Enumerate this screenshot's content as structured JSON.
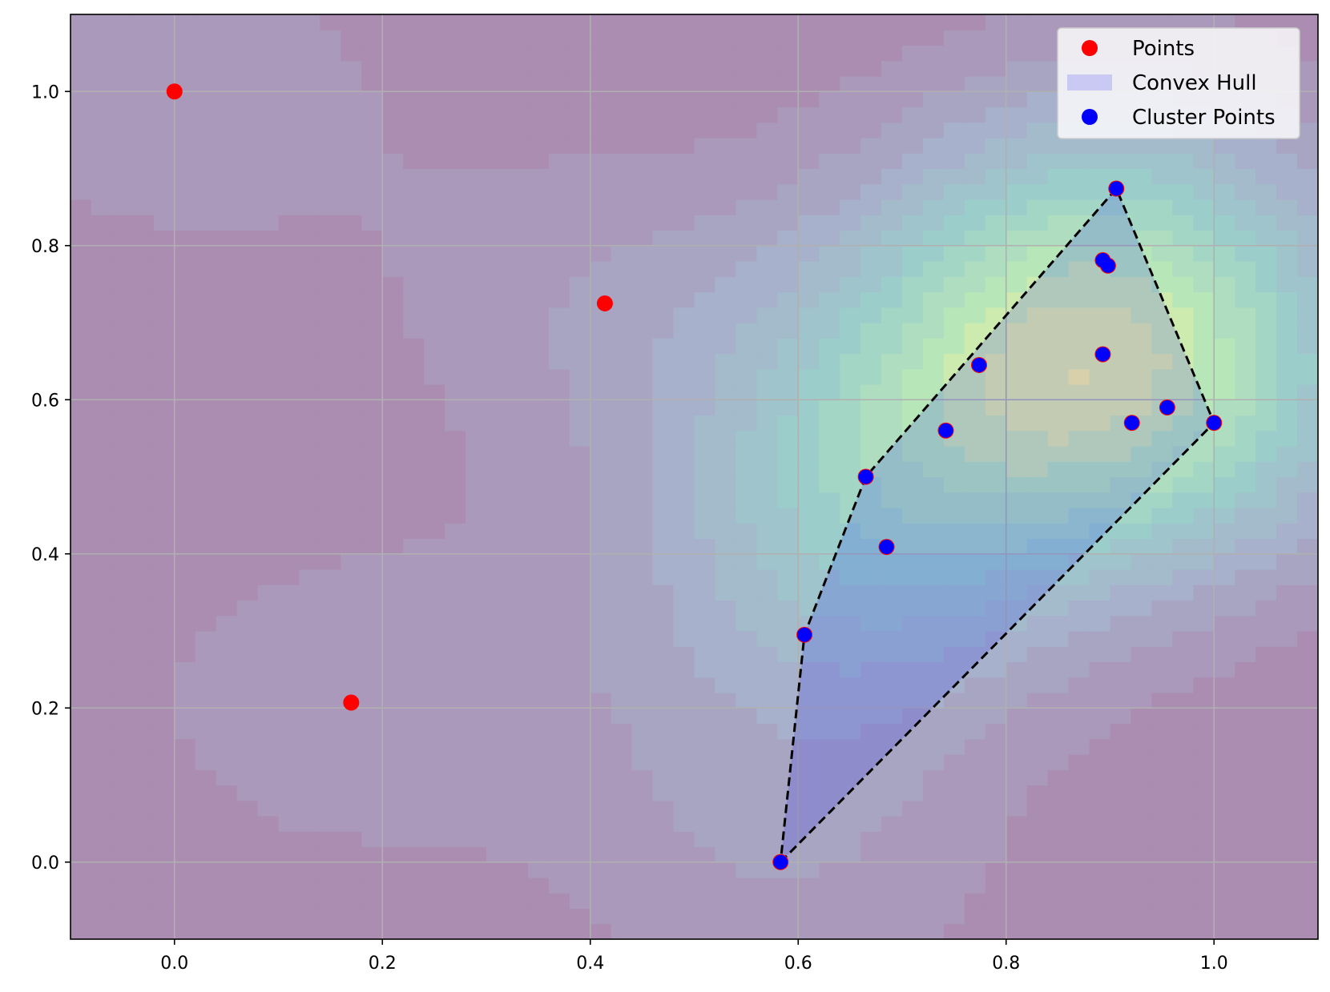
{
  "chart_data": {
    "type": "scatter",
    "title": "",
    "xlabel": "",
    "ylabel": "",
    "xlim": [
      -0.1,
      1.1
    ],
    "ylim": [
      -0.1,
      1.1
    ],
    "grid": true,
    "legend_position": "top-right",
    "x_ticks": [
      "0.0",
      "0.2",
      "0.4",
      "0.6",
      "0.8",
      "1.0"
    ],
    "y_ticks": [
      "0.0",
      "0.2",
      "0.4",
      "0.6",
      "0.8",
      "1.0"
    ],
    "background": {
      "kind": "density-contour",
      "colormap": "viridis",
      "alpha": 0.45,
      "peak": [
        0.81,
        0.62
      ]
    },
    "series": [
      {
        "name": "Points",
        "marker": "circle",
        "color": "#ff0000",
        "points": [
          [
            0.0,
            1.0
          ],
          [
            0.17,
            0.207
          ],
          [
            0.414,
            0.725
          ],
          [
            0.583,
            0.0
          ],
          [
            0.606,
            0.295
          ],
          [
            0.665,
            0.5
          ],
          [
            0.685,
            0.409
          ],
          [
            0.742,
            0.56
          ],
          [
            0.774,
            0.645
          ],
          [
            0.893,
            0.781
          ],
          [
            0.898,
            0.774
          ],
          [
            0.893,
            0.659
          ],
          [
            0.906,
            0.874
          ],
          [
            0.921,
            0.57
          ],
          [
            0.955,
            0.59
          ],
          [
            1.0,
            0.57
          ]
        ]
      },
      {
        "name": "Convex Hull",
        "kind": "polygon",
        "color": "#0000ff",
        "fill_alpha": 0.15,
        "edge_color": "#000000",
        "edge_style": "dashed",
        "vertices": [
          [
            0.583,
            0.0
          ],
          [
            1.0,
            0.57
          ],
          [
            0.906,
            0.874
          ],
          [
            0.665,
            0.5
          ],
          [
            0.606,
            0.295
          ]
        ]
      },
      {
        "name": "Cluster Points",
        "marker": "circle",
        "color": "#0000ff",
        "points": [
          [
            0.583,
            0.0
          ],
          [
            0.606,
            0.295
          ],
          [
            0.665,
            0.5
          ],
          [
            0.685,
            0.409
          ],
          [
            0.742,
            0.56
          ],
          [
            0.774,
            0.645
          ],
          [
            0.893,
            0.781
          ],
          [
            0.898,
            0.774
          ],
          [
            0.893,
            0.659
          ],
          [
            0.906,
            0.874
          ],
          [
            0.921,
            0.57
          ],
          [
            0.955,
            0.59
          ],
          [
            1.0,
            0.57
          ]
        ]
      }
    ]
  }
}
